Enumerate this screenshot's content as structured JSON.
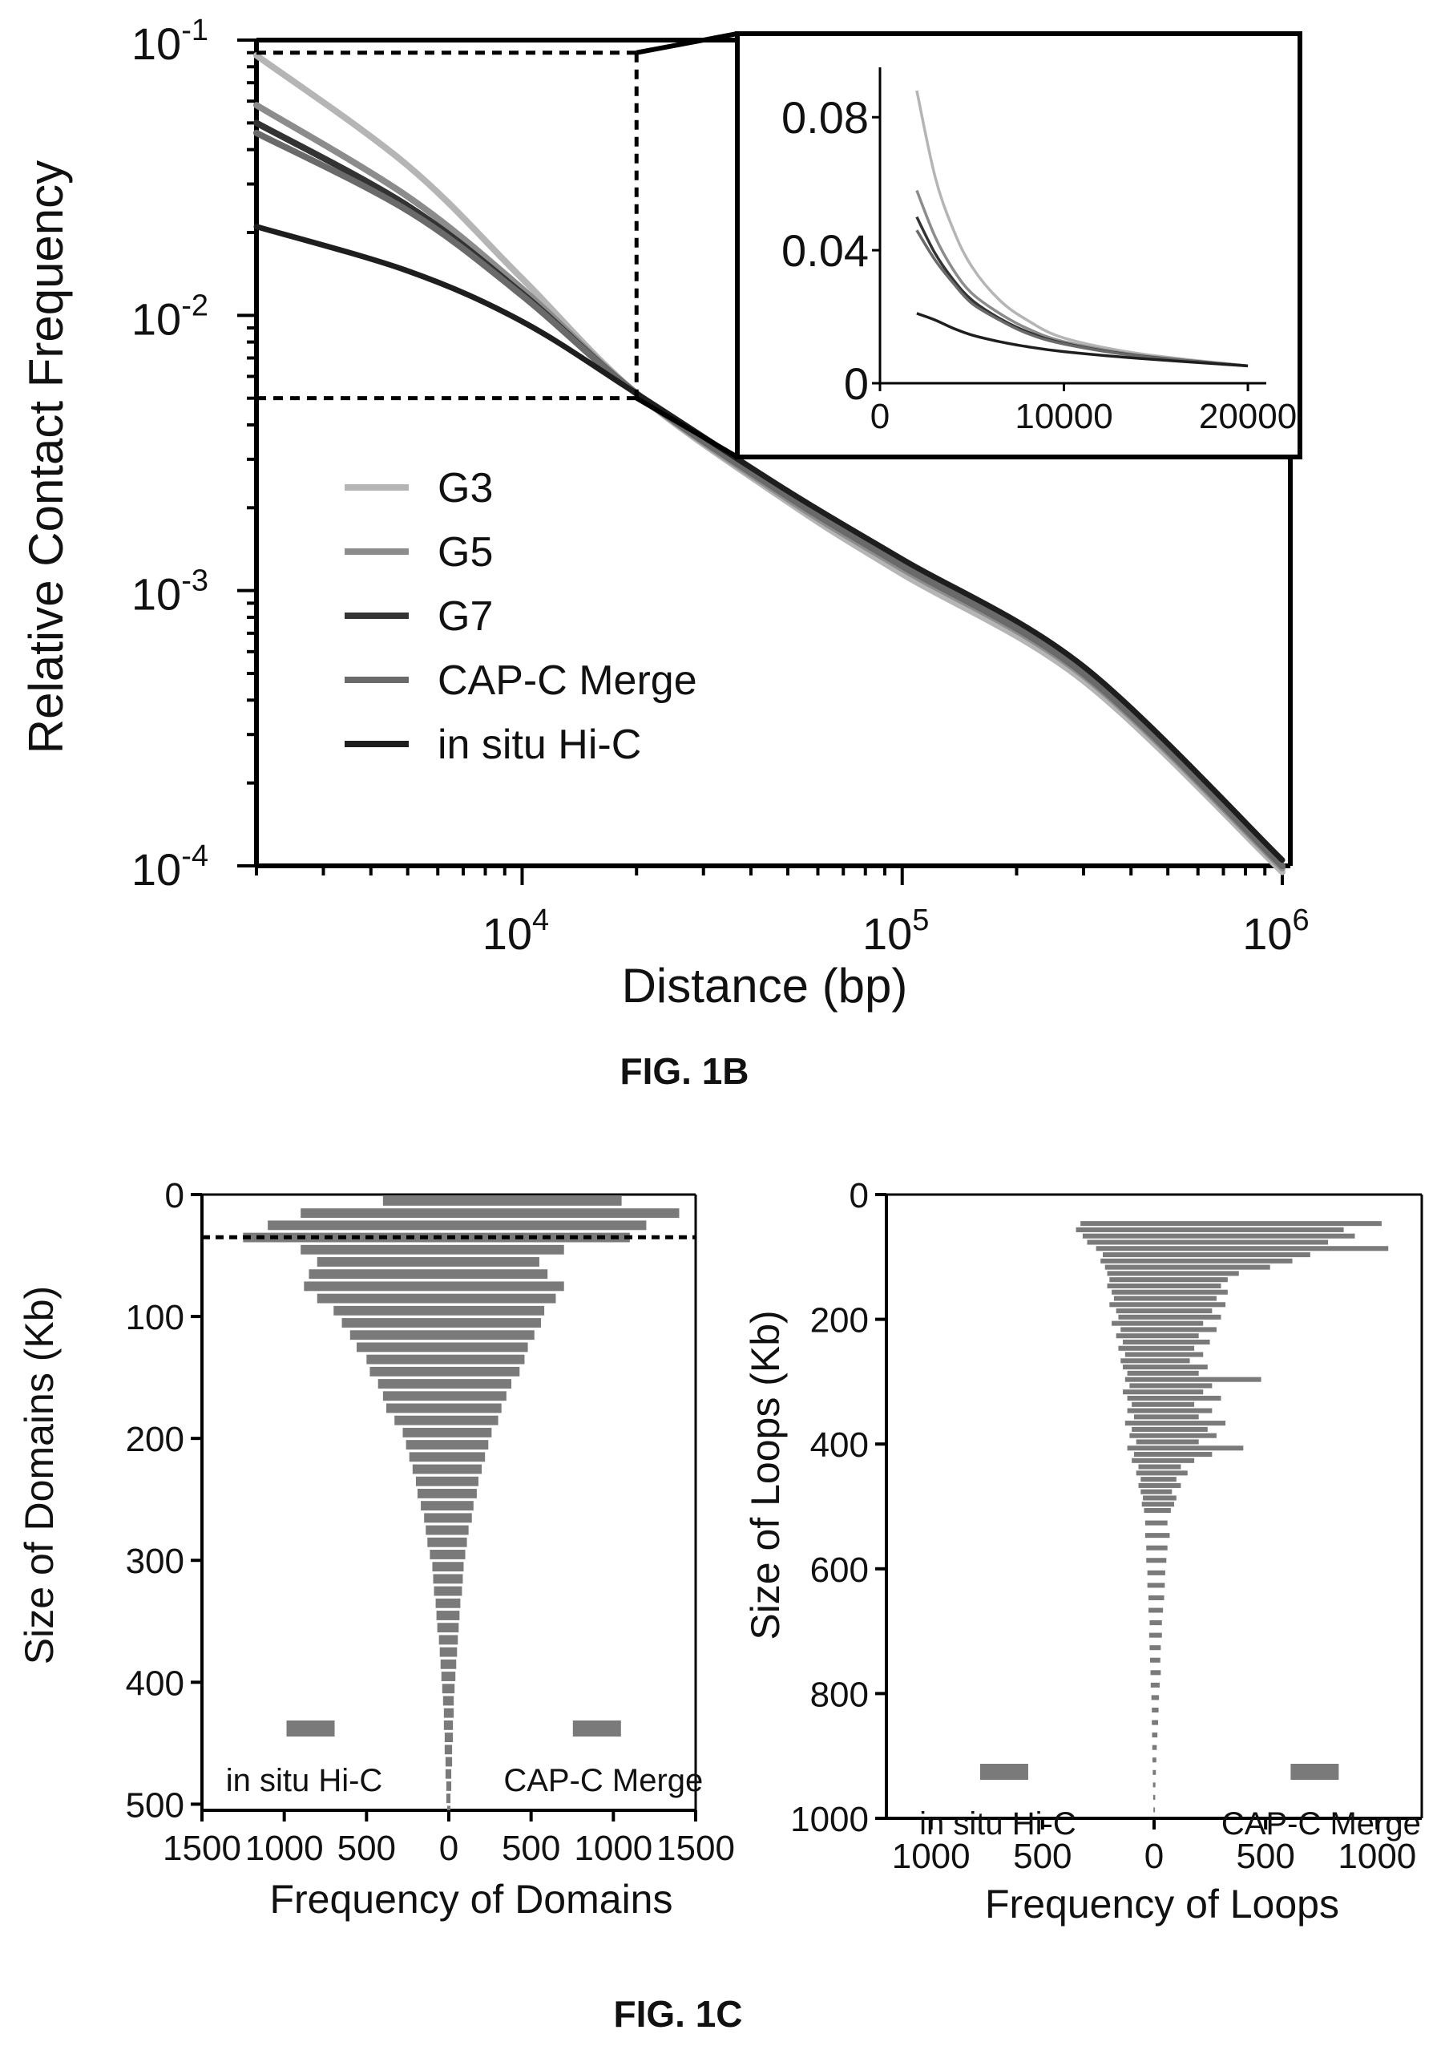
{
  "figures": {
    "fig1b_label": "FIG. 1B",
    "fig1c_label": "FIG. 1C"
  },
  "colors": {
    "G3": "#b5b5b5",
    "G5": "#8c8c8c",
    "G7": "#333333",
    "CAP-C Merge": "#6a6a6a",
    "in situ Hi-C": "#1e1e1e",
    "bars": "#7a7a7a",
    "axis": "#000000"
  },
  "chart_data": [
    {
      "id": "fig1b-main",
      "type": "line",
      "xlabel": "Distance (bp)",
      "ylabel": "Relative Contact Frequency",
      "x_scale": "log",
      "y_scale": "log",
      "xlim": [
        2000,
        1050000
      ],
      "ylim": [
        0.0001,
        0.1
      ],
      "x_ticks": [
        {
          "value": 10000,
          "base": "10",
          "exp": "4"
        },
        {
          "value": 100000,
          "base": "10",
          "exp": "5"
        },
        {
          "value": 1000000,
          "base": "10",
          "exp": "6"
        }
      ],
      "y_ticks": [
        {
          "value": 0.1,
          "base": "10",
          "exp": "-1"
        },
        {
          "value": 0.01,
          "base": "10",
          "exp": "-2"
        },
        {
          "value": 0.001,
          "base": "10",
          "exp": "-3"
        },
        {
          "value": 0.0001,
          "base": "10",
          "exp": "-4"
        }
      ],
      "legend_position": "center-left",
      "zoom_box": {
        "x": [
          2000,
          20000
        ],
        "y": [
          0.005,
          0.09
        ]
      },
      "series": [
        {
          "name": "G3",
          "x": [
            2000,
            5000,
            10000,
            20000,
            50000,
            100000,
            300000,
            1000000
          ],
          "y": [
            0.088,
            0.035,
            0.0136,
            0.0052,
            0.0021,
            0.00115,
            0.00047,
            9.5e-05
          ]
        },
        {
          "name": "G5",
          "x": [
            2000,
            5000,
            10000,
            20000,
            50000,
            100000,
            300000,
            1000000
          ],
          "y": [
            0.058,
            0.027,
            0.0125,
            0.0052,
            0.00215,
            0.0012,
            0.00049,
            9.8e-05
          ]
        },
        {
          "name": "G7",
          "x": [
            2000,
            5000,
            10000,
            20000,
            50000,
            100000,
            300000,
            1000000
          ],
          "y": [
            0.05,
            0.025,
            0.012,
            0.0052,
            0.0022,
            0.00123,
            0.0005,
            0.0001
          ]
        },
        {
          "name": "CAP-C Merge",
          "x": [
            2000,
            5000,
            10000,
            20000,
            50000,
            100000,
            300000,
            1000000
          ],
          "y": [
            0.046,
            0.024,
            0.0118,
            0.0052,
            0.0022,
            0.00123,
            0.0005,
            0.0001
          ]
        },
        {
          "name": "in situ Hi-C",
          "x": [
            2000,
            5000,
            10000,
            20000,
            50000,
            100000,
            300000,
            1000000
          ],
          "y": [
            0.021,
            0.0145,
            0.0095,
            0.0052,
            0.0023,
            0.0013,
            0.00053,
            0.000105
          ]
        }
      ]
    },
    {
      "id": "fig1b-inset",
      "type": "line",
      "xlim": [
        0,
        21000
      ],
      "ylim": [
        0,
        0.095
      ],
      "x_ticks": [
        "0",
        "10000",
        "20000"
      ],
      "y_ticks": [
        "0",
        "0.04",
        "0.08"
      ],
      "series": [
        {
          "name": "G3",
          "x": [
            2000,
            3000,
            4000,
            5000,
            6500,
            8000,
            10000,
            14000,
            20000
          ],
          "y": [
            0.088,
            0.062,
            0.046,
            0.035,
            0.025,
            0.019,
            0.0136,
            0.009,
            0.0052
          ]
        },
        {
          "name": "G5",
          "x": [
            2000,
            3000,
            4000,
            5000,
            6500,
            8000,
            10000,
            14000,
            20000
          ],
          "y": [
            0.058,
            0.044,
            0.034,
            0.027,
            0.021,
            0.0165,
            0.0125,
            0.0085,
            0.0052
          ]
        },
        {
          "name": "G7",
          "x": [
            2000,
            3000,
            4000,
            5000,
            6500,
            8000,
            10000,
            14000,
            20000
          ],
          "y": [
            0.05,
            0.039,
            0.031,
            0.025,
            0.0195,
            0.0155,
            0.012,
            0.0083,
            0.0052
          ]
        },
        {
          "name": "CAP-C Merge",
          "x": [
            2000,
            3000,
            4000,
            5000,
            6500,
            8000,
            10000,
            14000,
            20000
          ],
          "y": [
            0.046,
            0.037,
            0.03,
            0.024,
            0.019,
            0.015,
            0.0118,
            0.0082,
            0.0052
          ]
        },
        {
          "name": "in situ Hi-C",
          "x": [
            2000,
            3000,
            4000,
            5000,
            6500,
            8000,
            10000,
            14000,
            20000
          ],
          "y": [
            0.021,
            0.019,
            0.0165,
            0.0145,
            0.0125,
            0.011,
            0.0095,
            0.0075,
            0.0052
          ]
        }
      ]
    },
    {
      "id": "fig1c-domains",
      "type": "bar",
      "orientation": "horizontal-butterfly",
      "xlabel": "Frequency of Domains",
      "ylabel": "Size of Domains (Kb)",
      "xlim": [
        -1500,
        1500
      ],
      "ylim": [
        0,
        505
      ],
      "x_ticks": [
        {
          "value": -1500,
          "label": "1500"
        },
        {
          "value": -1000,
          "label": "1000"
        },
        {
          "value": -500,
          "label": "500"
        },
        {
          "value": 0,
          "label": "0"
        },
        {
          "value": 500,
          "label": "500"
        },
        {
          "value": 1000,
          "label": "1000"
        },
        {
          "value": 1500,
          "label": "1500"
        }
      ],
      "y_ticks": [
        "0",
        "100",
        "200",
        "300",
        "400",
        "500"
      ],
      "y_tick_values": [
        0,
        100,
        200,
        300,
        400,
        500
      ],
      "threshold_line": 35,
      "bin_width": 10,
      "legend": [
        {
          "name": "in situ Hi-C",
          "side": "left"
        },
        {
          "name": "CAP-C Merge",
          "side": "right"
        }
      ],
      "series": [
        {
          "name": "in situ Hi-C",
          "side": "left",
          "size_kb": [
            0,
            10,
            20,
            30,
            40,
            50,
            60,
            70,
            80,
            90,
            100,
            110,
            120,
            130,
            140,
            150,
            160,
            170,
            180,
            190,
            200,
            210,
            220,
            230,
            240,
            250,
            260,
            270,
            280,
            290,
            300,
            310,
            320,
            330,
            340,
            350,
            360,
            370,
            380,
            390,
            400,
            410,
            420,
            430,
            440,
            450,
            460,
            470,
            480,
            490,
            500
          ],
          "values": [
            400,
            900,
            1100,
            1250,
            900,
            800,
            850,
            880,
            800,
            700,
            650,
            600,
            560,
            500,
            480,
            430,
            400,
            380,
            330,
            280,
            260,
            240,
            220,
            200,
            190,
            170,
            150,
            140,
            130,
            115,
            100,
            95,
            90,
            80,
            75,
            70,
            60,
            55,
            50,
            45,
            40,
            35,
            30,
            30,
            25,
            25,
            20,
            20,
            15,
            15,
            10
          ]
        },
        {
          "name": "CAP-C Merge",
          "side": "right",
          "size_kb": [
            0,
            10,
            20,
            30,
            40,
            50,
            60,
            70,
            80,
            90,
            100,
            110,
            120,
            130,
            140,
            150,
            160,
            170,
            180,
            190,
            200,
            210,
            220,
            230,
            240,
            250,
            260,
            270,
            280,
            290,
            300,
            310,
            320,
            330,
            340,
            350,
            360,
            370,
            380,
            390,
            400,
            410,
            420,
            430,
            440,
            450,
            460,
            470,
            480,
            490,
            500
          ],
          "values": [
            1050,
            1400,
            1200,
            1100,
            700,
            550,
            600,
            700,
            650,
            580,
            560,
            520,
            480,
            460,
            430,
            380,
            350,
            320,
            300,
            260,
            240,
            220,
            200,
            180,
            170,
            150,
            140,
            120,
            110,
            100,
            90,
            85,
            80,
            70,
            65,
            60,
            55,
            50,
            45,
            40,
            35,
            30,
            30,
            25,
            25,
            20,
            20,
            15,
            15,
            10,
            10
          ]
        }
      ]
    },
    {
      "id": "fig1c-loops",
      "type": "bar",
      "orientation": "horizontal-butterfly",
      "xlabel": "Frequency of Loops",
      "ylabel": "Size of Loops (Kb)",
      "xlim": [
        -1200,
        1200
      ],
      "ylim": [
        0,
        1000
      ],
      "x_ticks": [
        {
          "value": -1000,
          "label": "1000"
        },
        {
          "value": -500,
          "label": "500"
        },
        {
          "value": 0,
          "label": "0"
        },
        {
          "value": 500,
          "label": "500"
        },
        {
          "value": 1000,
          "label": "1000"
        }
      ],
      "y_ticks": [
        "0",
        "200",
        "400",
        "600",
        "800",
        "1000"
      ],
      "y_tick_values": [
        0,
        200,
        400,
        600,
        800,
        1000
      ],
      "bin_width": 10,
      "legend": [
        {
          "name": "in situ Hi-C",
          "side": "left"
        },
        {
          "name": "CAP-C Merge",
          "side": "right"
        }
      ],
      "series": [
        {
          "name": "in situ Hi-C",
          "side": "left",
          "size_kb": [
            40,
            50,
            60,
            70,
            80,
            90,
            100,
            110,
            120,
            130,
            140,
            150,
            160,
            170,
            180,
            190,
            200,
            210,
            220,
            230,
            240,
            250,
            260,
            270,
            280,
            290,
            300,
            310,
            320,
            330,
            340,
            350,
            360,
            370,
            380,
            390,
            400,
            410,
            420,
            430,
            440,
            450,
            460,
            470,
            480,
            490,
            500,
            520,
            540,
            560,
            580,
            600,
            620,
            640,
            660,
            680,
            700,
            720,
            740,
            760,
            780,
            800,
            820,
            840,
            860,
            880,
            900,
            920,
            940,
            960,
            980
          ],
          "values": [
            330,
            350,
            320,
            300,
            260,
            230,
            240,
            220,
            210,
            200,
            210,
            190,
            180,
            200,
            170,
            160,
            190,
            150,
            170,
            140,
            160,
            130,
            150,
            140,
            120,
            130,
            110,
            140,
            120,
            100,
            120,
            90,
            130,
            100,
            110,
            80,
            120,
            90,
            100,
            70,
            80,
            60,
            70,
            60,
            50,
            55,
            45,
            40,
            40,
            35,
            35,
            30,
            30,
            25,
            25,
            20,
            22,
            20,
            18,
            16,
            15,
            12,
            10,
            10,
            9,
            8,
            7,
            6,
            5,
            4,
            3
          ]
        },
        {
          "name": "CAP-C Merge",
          "side": "right",
          "size_kb": [
            40,
            50,
            60,
            70,
            80,
            90,
            100,
            110,
            120,
            130,
            140,
            150,
            160,
            170,
            180,
            190,
            200,
            210,
            220,
            230,
            240,
            250,
            260,
            270,
            280,
            290,
            300,
            310,
            320,
            330,
            340,
            350,
            360,
            370,
            380,
            390,
            400,
            410,
            420,
            430,
            440,
            450,
            460,
            470,
            480,
            490,
            500,
            520,
            540,
            560,
            580,
            600,
            620,
            640,
            660,
            680,
            700,
            720,
            740,
            760,
            780,
            800,
            820,
            840,
            860,
            880,
            900,
            920,
            940,
            960,
            980
          ],
          "values": [
            1020,
            850,
            900,
            780,
            1050,
            700,
            620,
            520,
            380,
            330,
            300,
            330,
            280,
            320,
            260,
            300,
            220,
            280,
            200,
            250,
            180,
            220,
            160,
            240,
            200,
            480,
            260,
            220,
            300,
            180,
            260,
            200,
            320,
            240,
            280,
            200,
            400,
            260,
            180,
            120,
            150,
            100,
            120,
            80,
            100,
            90,
            75,
            60,
            70,
            60,
            55,
            50,
            48,
            45,
            40,
            35,
            35,
            30,
            28,
            30,
            25,
            22,
            20,
            18,
            15,
            12,
            10,
            8,
            6,
            5,
            4
          ]
        }
      ]
    }
  ]
}
